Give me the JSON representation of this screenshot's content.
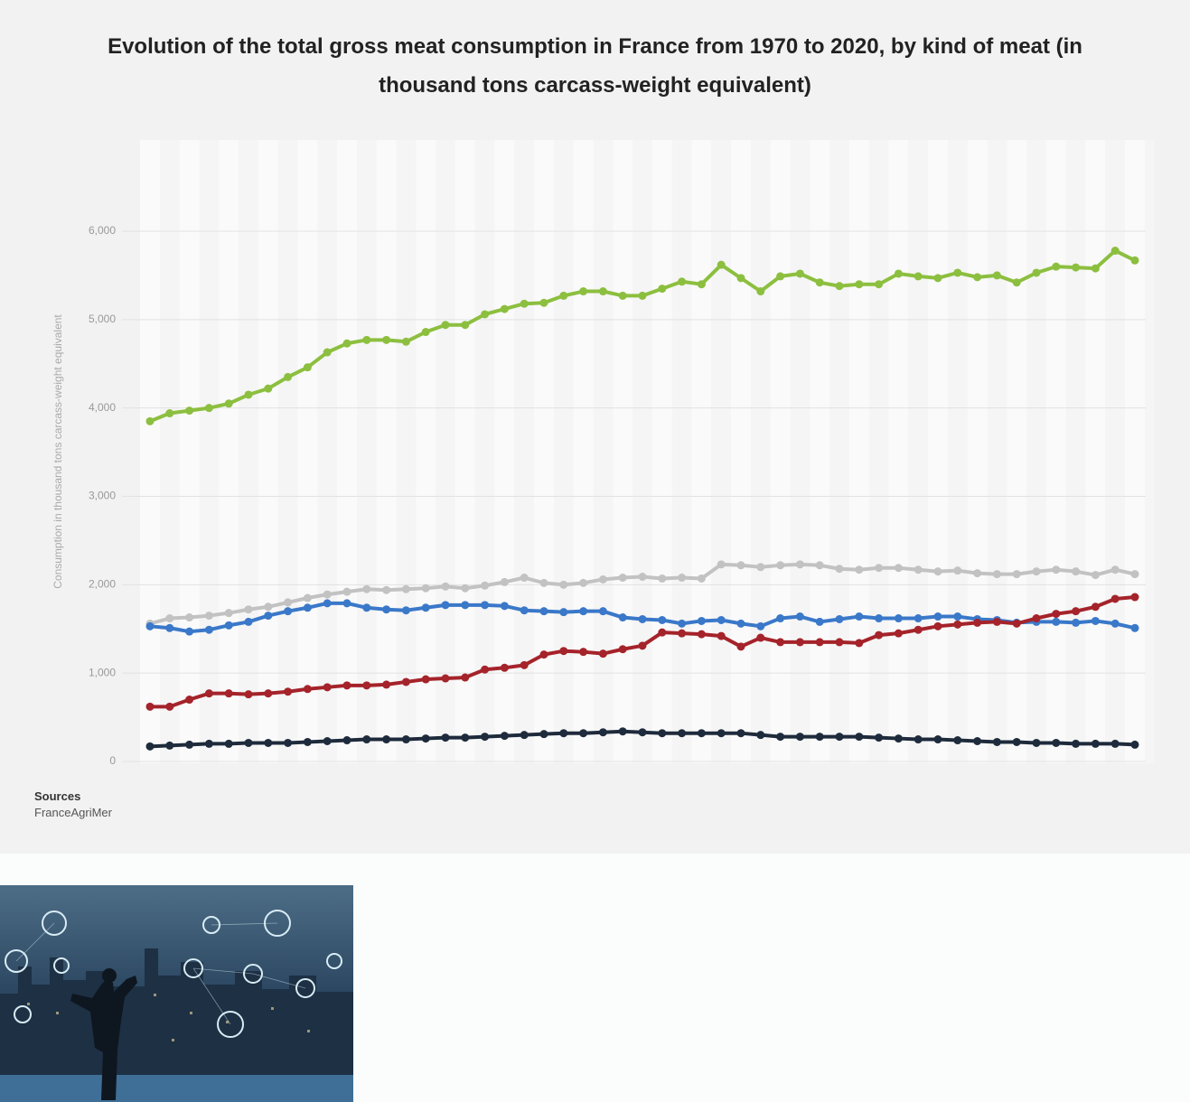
{
  "chart_data": {
    "type": "line",
    "title": "Evolution of the total gross meat consumption in France from 1970 to 2020, by kind of meat (in thousand tons carcass-weight equivalent)",
    "y_label": "Consumption in thousand tons carcass-weight equivalent",
    "ylim": [
      0,
      6000
    ],
    "yticks": [
      0,
      {
        "value": 1000,
        "label": "1,000"
      },
      {
        "value": 2000,
        "label": "2,000"
      },
      {
        "value": 3000,
        "label": "3,000"
      },
      {
        "value": 4000,
        "label": "4,000"
      },
      {
        "value": 5000,
        "label": "5,000"
      },
      {
        "value": 6000,
        "label": "6,000"
      }
    ],
    "grid": true,
    "series": [
      {
        "color": "#8cbf3f",
        "values": [
          3850,
          3940,
          3970,
          4000,
          4050,
          4150,
          4220,
          4350,
          4460,
          4630,
          4730,
          4770,
          4770,
          4750,
          4860,
          4940,
          4940,
          5060,
          5120,
          5180,
          5190,
          5270,
          5320,
          5320,
          5270,
          5270,
          5350,
          5430,
          5400,
          5620,
          5470,
          5320,
          5490,
          5520,
          5420,
          5380,
          5400,
          5400,
          5520,
          5490,
          5470,
          5530,
          5480,
          5500,
          5420,
          5530,
          5600,
          5590,
          5580,
          5780,
          5670
        ]
      },
      {
        "color": "#c2c2c2",
        "values": [
          1560,
          1620,
          1630,
          1650,
          1680,
          1720,
          1750,
          1800,
          1850,
          1890,
          1920,
          1950,
          1940,
          1950,
          1960,
          1980,
          1960,
          1990,
          2030,
          2080,
          2020,
          2000,
          2020,
          2060,
          2080,
          2090,
          2070,
          2080,
          2070,
          2230,
          2220,
          2200,
          2220,
          2230,
          2220,
          2180,
          2170,
          2190,
          2190,
          2170,
          2150,
          2160,
          2130,
          2120,
          2120,
          2150,
          2170,
          2150,
          2110,
          2170,
          2120
        ]
      },
      {
        "color": "#3a78c9",
        "values": [
          1530,
          1510,
          1470,
          1490,
          1540,
          1580,
          1650,
          1700,
          1740,
          1790,
          1790,
          1740,
          1720,
          1710,
          1740,
          1770,
          1770,
          1770,
          1760,
          1710,
          1700,
          1690,
          1700,
          1700,
          1630,
          1610,
          1600,
          1560,
          1590,
          1600,
          1560,
          1530,
          1620,
          1640,
          1580,
          1610,
          1640,
          1620,
          1620,
          1620,
          1640,
          1640,
          1610,
          1600,
          1570,
          1580,
          1580,
          1570,
          1590,
          1560,
          1510
        ]
      },
      {
        "color": "#a5232a",
        "values": [
          620,
          620,
          700,
          770,
          770,
          760,
          770,
          790,
          820,
          840,
          860,
          860,
          870,
          900,
          930,
          940,
          950,
          1040,
          1060,
          1090,
          1210,
          1250,
          1240,
          1220,
          1270,
          1310,
          1460,
          1450,
          1440,
          1420,
          1300,
          1400,
          1350,
          1350,
          1350,
          1350,
          1340,
          1430,
          1450,
          1490,
          1530,
          1550,
          1570,
          1580,
          1560,
          1620,
          1670,
          1700,
          1750,
          1840,
          1860
        ]
      },
      {
        "color": "#1e2b3c",
        "values": [
          170,
          180,
          190,
          200,
          200,
          210,
          210,
          210,
          220,
          230,
          240,
          250,
          250,
          250,
          260,
          270,
          270,
          280,
          290,
          300,
          310,
          320,
          320,
          330,
          340,
          330,
          320,
          320,
          320,
          320,
          320,
          300,
          280,
          280,
          280,
          280,
          280,
          270,
          260,
          250,
          250,
          240,
          230,
          220,
          220,
          210,
          210,
          200,
          200,
          200,
          190
        ]
      }
    ]
  },
  "source": {
    "heading": "Sources",
    "lines": [
      "FranceAgriMer"
    ]
  }
}
